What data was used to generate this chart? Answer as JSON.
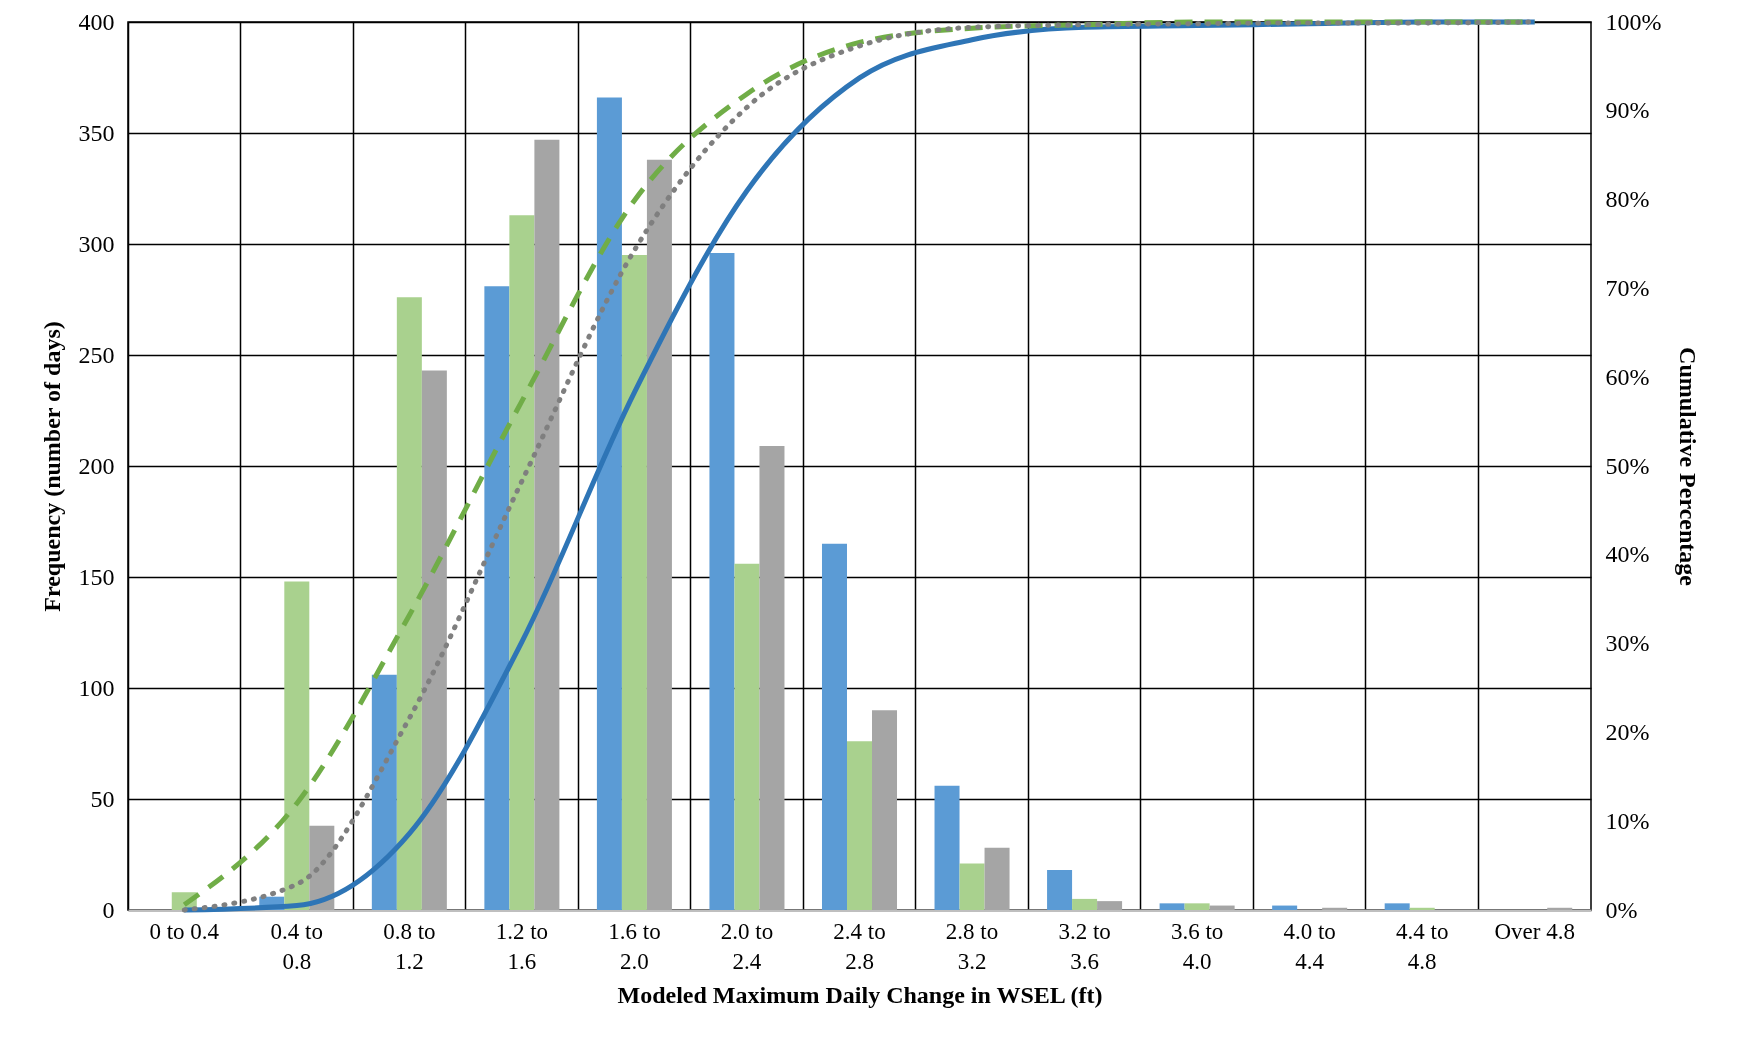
{
  "chart_data": {
    "type": "bar",
    "xlabel": "Modeled Maximum Daily Change in WSEL (ft)",
    "ylabel": "Frequency (number of days)",
    "y2label": "Cumulative Percentage",
    "categories": [
      "0 to 0.4",
      "0.4 to 0.8",
      "0.8 to 1.2",
      "1.2 to 1.6",
      "1.6 to 2.0",
      "2.0 to 2.4",
      "2.4 to 2.8",
      "2.8 to 3.2",
      "3.2 to 3.6",
      "3.6 to 4.0",
      "4.0 to 4.4",
      "4.4 to 4.8",
      "Over 4.8"
    ],
    "series": [
      {
        "color": "#5b9bd5",
        "values": [
          0,
          6,
          106,
          281,
          366,
          296,
          165,
          56,
          18,
          3,
          2,
          3,
          0
        ]
      },
      {
        "color": "#a9d18e",
        "values": [
          8,
          148,
          276,
          313,
          295,
          156,
          76,
          21,
          5,
          3,
          0,
          1,
          0
        ]
      },
      {
        "color": "#a5a5a5",
        "values": [
          0,
          38,
          243,
          347,
          338,
          209,
          90,
          28,
          4,
          2,
          1,
          0,
          1
        ]
      },
      {
        "type": "line",
        "axis": "y2",
        "line_style": "solid",
        "color": "#2e75b6",
        "values": [
          0,
          0.5,
          8.6,
          30.2,
          58.3,
          81.0,
          93.7,
          98.0,
          99.4,
          99.6,
          99.8,
          100,
          100
        ]
      },
      {
        "type": "line",
        "axis": "y2",
        "line_style": "dashed",
        "color": "#70ad47",
        "values": [
          0.6,
          12.0,
          33.2,
          57.3,
          79.9,
          91.9,
          97.7,
          99.3,
          99.7,
          100,
          100,
          100,
          100
        ]
      },
      {
        "type": "line",
        "axis": "y2",
        "line_style": "dotted",
        "color": "#7f7f7f",
        "values": [
          0,
          2.9,
          21.6,
          48.3,
          74.3,
          90.4,
          97.3,
          99.4,
          99.7,
          99.8,
          99.9,
          99.9,
          100
        ]
      }
    ],
    "ylim": [
      0,
      400
    ],
    "yticks": [
      0,
      50,
      100,
      150,
      200,
      250,
      300,
      350,
      400
    ],
    "y2lim": [
      0,
      100
    ],
    "y2ticks": [
      {
        "value": 0,
        "label": "0%"
      },
      {
        "value": 10,
        "label": "10%"
      },
      {
        "value": 20,
        "label": "20%"
      },
      {
        "value": 30,
        "label": "30%"
      },
      {
        "value": 40,
        "label": "40%"
      },
      {
        "value": 50,
        "label": "50%"
      },
      {
        "value": 60,
        "label": "60%"
      },
      {
        "value": 70,
        "label": "70%"
      },
      {
        "value": 80,
        "label": "80%"
      },
      {
        "value": 90,
        "label": "90%"
      },
      {
        "value": 100,
        "label": "100%"
      }
    ],
    "grid": true,
    "legend": false
  }
}
